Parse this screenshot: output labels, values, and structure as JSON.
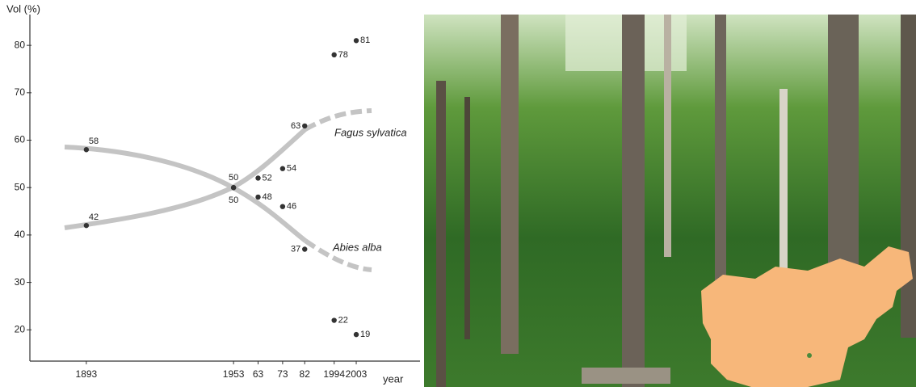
{
  "chart_data": {
    "type": "scatter",
    "y_label": "Vol (%)",
    "x_label": "year",
    "x": [
      1893,
      1953,
      1963,
      1973,
      1982,
      1994,
      2003
    ],
    "series": [
      {
        "name": "Fagus sylvatica",
        "color": "#333333",
        "values": [
          42,
          50,
          52,
          54,
          63,
          78,
          81
        ]
      },
      {
        "name": "Abies alba",
        "color": "#333333",
        "values": [
          58,
          50,
          48,
          46,
          37,
          22,
          19
        ]
      }
    ],
    "xlim": [
      1870,
      2029
    ],
    "ylim": [
      13.4,
      86.5
    ],
    "xticks": [
      1893,
      1953,
      {
        "value": 1963,
        "label": "63"
      },
      {
        "value": 1973,
        "label": "73"
      },
      {
        "value": 1982,
        "label": "82"
      },
      1994,
      2003
    ],
    "yticks": [
      20,
      30,
      40,
      50,
      60,
      70,
      80
    ]
  }
}
